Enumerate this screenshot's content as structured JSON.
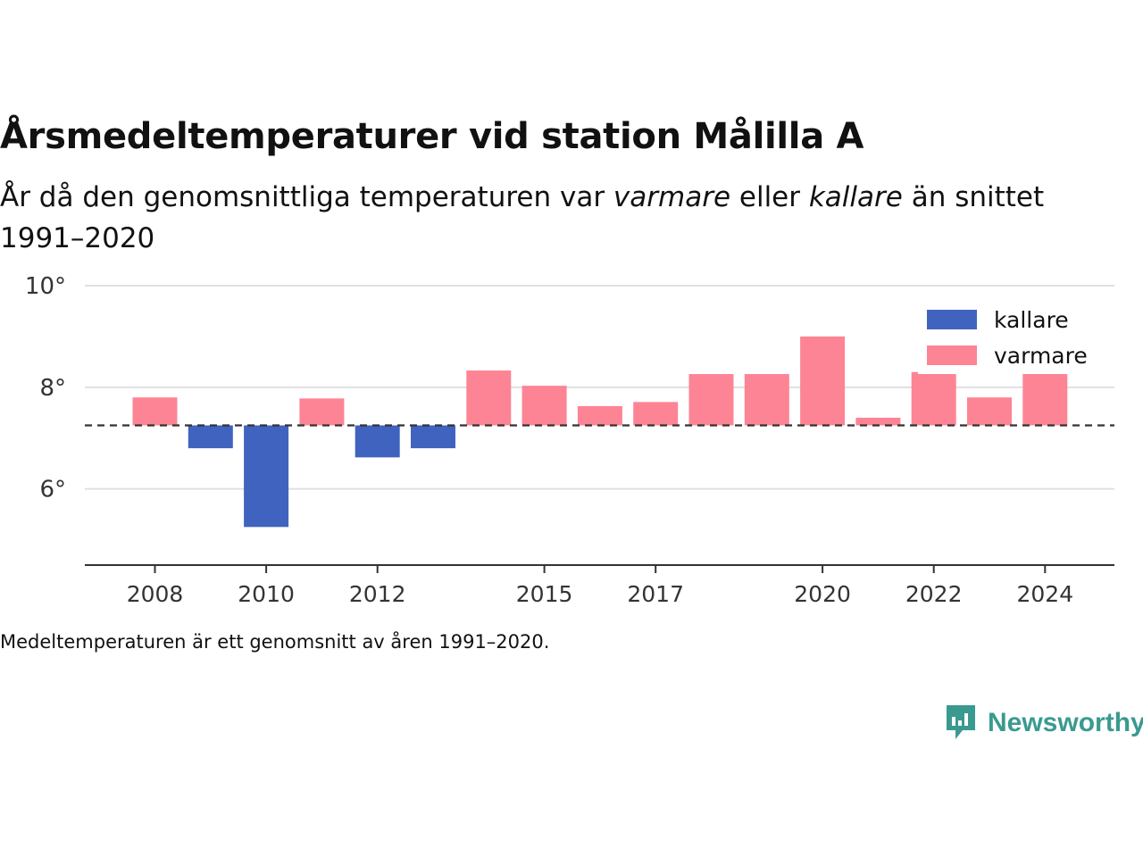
{
  "title": "Årsmedeltemperaturer vid station Målilla A",
  "subtitle": {
    "part1": "År då den genomsnittliga temperaturen var ",
    "em1": "varmare",
    "part2": " eller ",
    "em2": "kallare",
    "part3": " än snittet 1991–2020"
  },
  "footnote": "Medeltemperaturen är ett genomsnitt av åren 1991–2020.",
  "brand": {
    "name": "Newsworthy",
    "icon": "newsworthy-logo-icon"
  },
  "colors": {
    "kallare": "#4063bf",
    "varmare": "#fd8494",
    "grid": "#e0e0e0",
    "axis": "#333333"
  },
  "chart_data": {
    "type": "bar",
    "baseline": 7.25,
    "baseline_style": "dashed",
    "x": [
      2008,
      2009,
      2010,
      2011,
      2012,
      2013,
      2014,
      2015,
      2016,
      2017,
      2018,
      2019,
      2020,
      2021,
      2022,
      2023,
      2024
    ],
    "values": [
      7.8,
      6.8,
      5.25,
      7.78,
      6.62,
      6.8,
      8.33,
      8.03,
      7.63,
      7.71,
      8.26,
      8.26,
      9.0,
      7.4,
      8.3,
      7.8,
      8.33
    ],
    "series": [
      {
        "name": "kallare",
        "color": "#4063bf"
      },
      {
        "name": "varmare",
        "color": "#fd8494"
      }
    ],
    "ylim": [
      4.5,
      10
    ],
    "yticks": [
      6,
      8,
      10
    ],
    "ytick_labels": [
      "6°",
      "8°",
      "10°"
    ],
    "xticks": [
      2008,
      2010,
      2012,
      2015,
      2017,
      2020,
      2022,
      2024
    ],
    "xtick_labels": [
      "2008",
      "2010",
      "2012",
      "2015",
      "2017",
      "2020",
      "2022",
      "2024"
    ],
    "xlabel": "",
    "ylabel": "",
    "grid": true,
    "legend_position": "top-right"
  }
}
